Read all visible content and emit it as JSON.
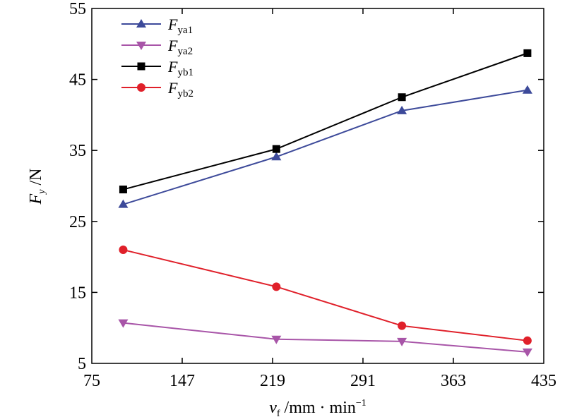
{
  "chart_data": {
    "type": "line",
    "x_label_main": "v",
    "x_label_sub": "f",
    "x_label_rest": " /mm · min",
    "x_label_sup": "−1",
    "y_label_main": "F",
    "y_label_sub": "y",
    "y_label_rest": " /N",
    "x_ticks": [
      75,
      147,
      219,
      291,
      363,
      435
    ],
    "y_ticks": [
      5,
      15,
      25,
      35,
      45,
      55
    ],
    "xlim": [
      75,
      435
    ],
    "ylim": [
      5,
      55
    ],
    "grid": false,
    "legend_position": "top-left",
    "x": [
      100,
      222,
      322,
      422
    ],
    "series": [
      {
        "name_main": "F",
        "name_sub": "ya1",
        "color": "#3d4a9a",
        "marker": "triangle-up",
        "values": [
          27.4,
          34.1,
          40.6,
          43.5
        ]
      },
      {
        "name_main": "F",
        "name_sub": "ya2",
        "color": "#a855a8",
        "marker": "triangle-down",
        "values": [
          10.7,
          8.4,
          8.1,
          6.6
        ]
      },
      {
        "name_main": "F",
        "name_sub": "yb1",
        "color": "#000000",
        "marker": "square",
        "values": [
          29.5,
          35.2,
          42.5,
          48.7
        ]
      },
      {
        "name_main": "F",
        "name_sub": "yb2",
        "color": "#e0202a",
        "marker": "circle",
        "values": [
          21.0,
          15.8,
          10.3,
          8.2
        ]
      }
    ]
  }
}
